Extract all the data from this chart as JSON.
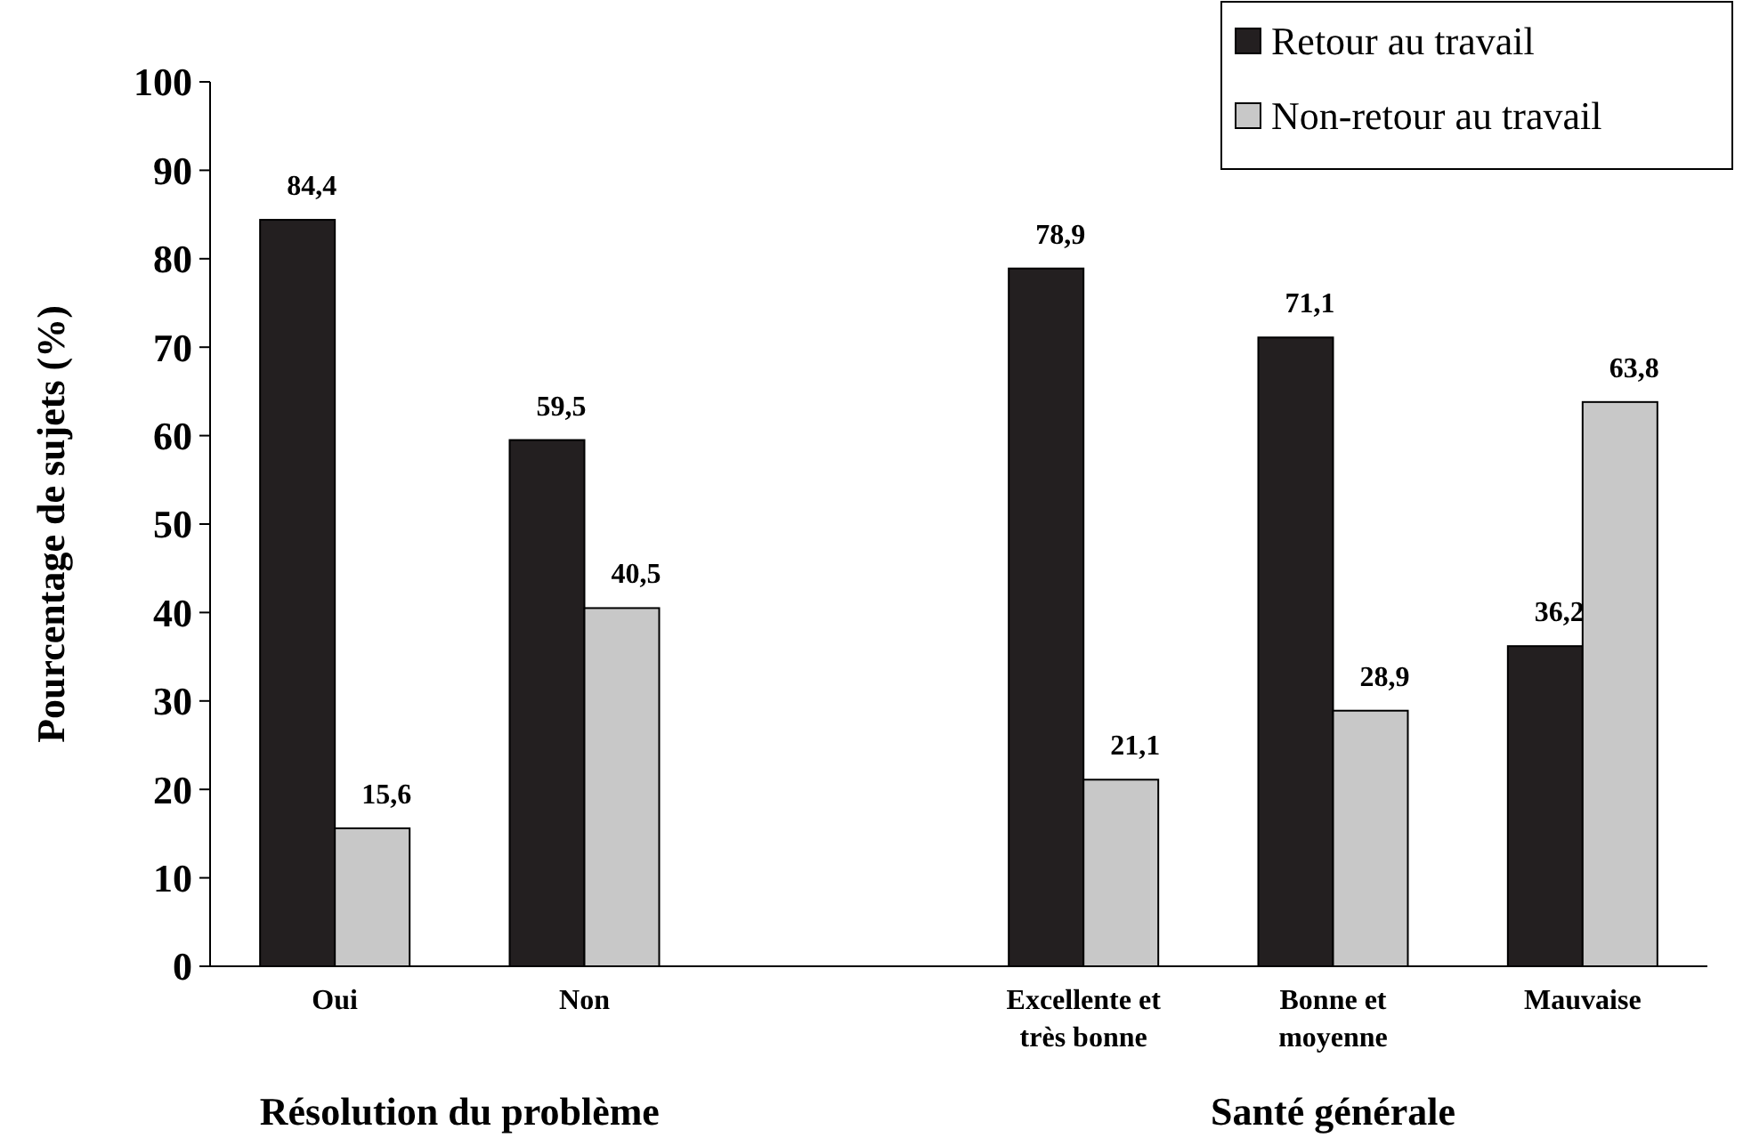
{
  "chart_data": {
    "type": "bar",
    "ylabel": "Pourcentage de sujets (%)",
    "categories": [
      "Oui",
      "Non",
      null,
      "Excellente et très bonne",
      "Bonne et moyenne",
      "Mauvaise"
    ],
    "series": [
      {
        "name": "Retour au travail",
        "color": "#231f20",
        "values": [
          84.4,
          59.5,
          null,
          78.9,
          71.1,
          36.2
        ],
        "value_labels": [
          "84,4",
          "59,5",
          null,
          "78,9",
          "71,1",
          "36,2"
        ]
      },
      {
        "name": "Non-retour au travail",
        "color": "#c8c8c8",
        "values": [
          15.6,
          40.5,
          null,
          21.1,
          28.9,
          63.8
        ],
        "value_labels": [
          "15,6",
          "40,5",
          null,
          "21,1",
          "28,9",
          "63,8"
        ]
      }
    ],
    "ylim": [
      0,
      100
    ],
    "yticks": [
      0,
      10,
      20,
      30,
      40,
      50,
      60,
      70,
      80,
      90,
      100
    ],
    "grid": false,
    "legend": "top right",
    "annotations": [
      "Résolution du problème",
      "Santé générale"
    ]
  }
}
